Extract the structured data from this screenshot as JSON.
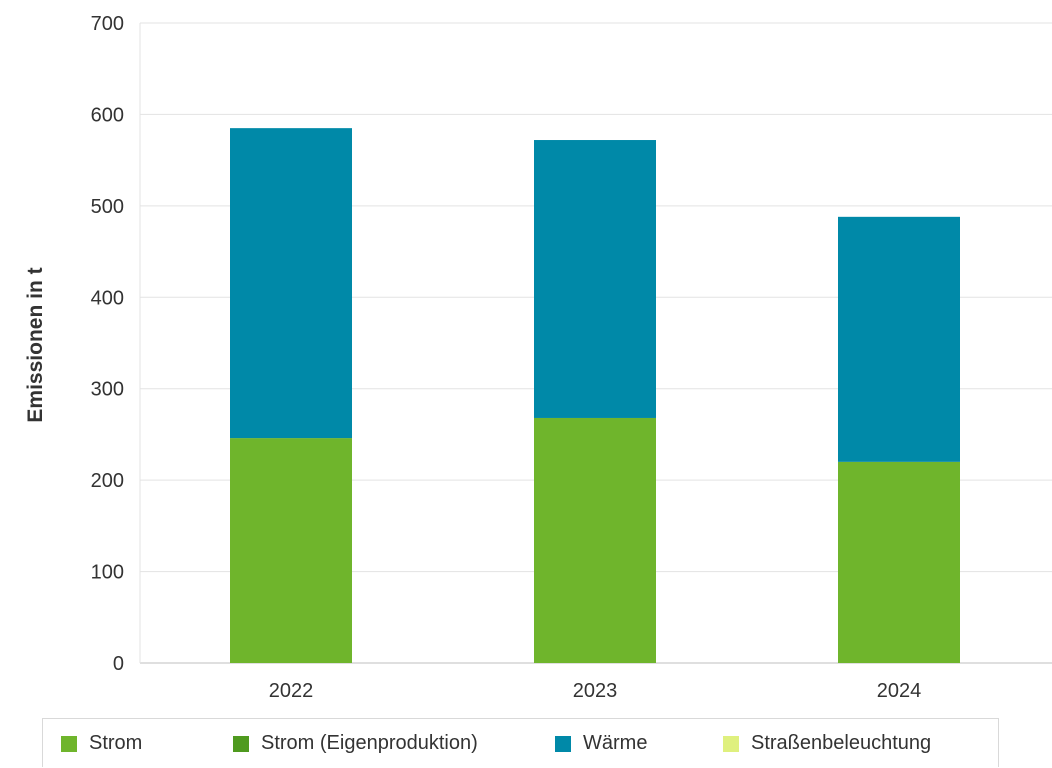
{
  "chart_data": {
    "type": "bar",
    "stacked": true,
    "categories": [
      "2022",
      "2023",
      "2024"
    ],
    "series": [
      {
        "name": "Strom",
        "color": "#6fb52c",
        "values": [
          246,
          268,
          220
        ]
      },
      {
        "name": "Strom (Eigenproduktion)",
        "color": "#4f9a1f",
        "values": [
          0,
          0,
          0
        ]
      },
      {
        "name": "Wärme",
        "color": "#0089a8",
        "values": [
          339,
          304,
          268
        ]
      },
      {
        "name": "Straßenbeleuchtung",
        "color": "#dff07e",
        "values": [
          0,
          0,
          0
        ]
      }
    ],
    "ylabel": "Emissionen in t",
    "ylim": [
      0,
      700
    ],
    "yticks": [
      "0",
      "100",
      "200",
      "300",
      "400",
      "500",
      "600",
      "700"
    ],
    "grid": true,
    "legend_position": "bottom"
  }
}
